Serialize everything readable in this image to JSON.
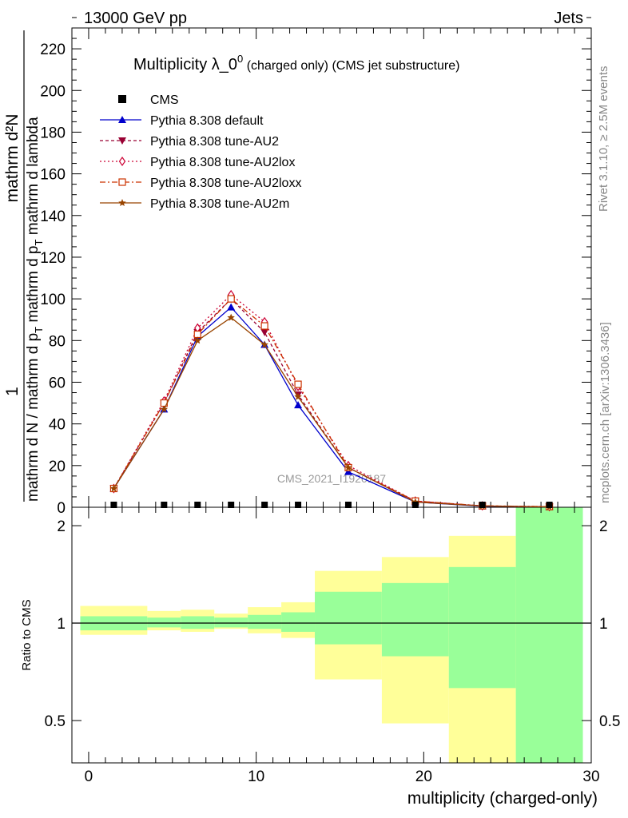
{
  "header": {
    "left": "13000 GeV pp",
    "right": "Jets"
  },
  "side_labels": {
    "rivet": "Rivet 3.1.10, ≥ 2.5M events",
    "mcplots": "mcplots.cern.ch [arXiv:1306.3436]"
  },
  "watermark": "CMS_2021_I1920187",
  "chart_data": {
    "type": "line",
    "title": "Multiplicity λ_0",
    "title_sup": "0",
    "title_suffix": " (charged only) (CMS jet substructure)",
    "ylabel_numerator": "1",
    "ylabel_numerator_main": "mathrm d²N",
    "ylabel_den_parts": [
      "mathrm d N / mathrm d p",
      "T",
      " mathrm d p",
      "T",
      " mathrm d lambda"
    ],
    "ylabel_den_short": "mathrm d N / mathrm d p",
    "xlabel": "multiplicity (charged-only)",
    "ratio_ylabel": "Ratio to CMS",
    "xlim": [
      -1,
      30
    ],
    "ylim": [
      0,
      230
    ],
    "xticks": [
      0,
      10,
      20,
      30
    ],
    "yticks": [
      0,
      20,
      40,
      60,
      80,
      100,
      120,
      140,
      160,
      180,
      200,
      220
    ],
    "ratio_ylim": [
      0.37,
      2.28
    ],
    "ratio_ticks": [
      0.5,
      1,
      2
    ],
    "x": [
      1.5,
      4.5,
      6.5,
      8.5,
      10.5,
      12.5,
      15.5,
      19.5,
      23.5,
      27.5
    ],
    "data": {
      "name": "CMS",
      "values": [
        0.5,
        0.5,
        0.5,
        0.5,
        0.5,
        0.5,
        0.5,
        0.1,
        0.05,
        0.02
      ]
    },
    "series": [
      {
        "name": "Pythia 8.308 default",
        "color": "#0000cc",
        "marker": "triangle-up",
        "dash": "",
        "values": [
          9,
          47,
          82,
          96,
          78,
          49,
          17,
          2.5,
          0.5,
          0.2
        ]
      },
      {
        "name": "Pythia 8.308 tune-AU2",
        "color": "#990033",
        "marker": "triangle-down",
        "dash": "4,3",
        "values": [
          9,
          50,
          84,
          100,
          84,
          54,
          19,
          3,
          0.6,
          0.2
        ]
      },
      {
        "name": "Pythia 8.308 tune-AU2lox",
        "color": "#cc0033",
        "marker": "diamond",
        "dash": "2,3",
        "values": [
          9,
          51,
          86,
          102,
          89,
          58,
          20,
          3,
          0.7,
          0.3
        ]
      },
      {
        "name": "Pythia 8.308 tune-AU2loxx",
        "color": "#cc3300",
        "marker": "square",
        "dash": "7,3,2,3",
        "values": [
          9,
          50,
          83,
          100,
          87,
          59,
          19,
          3,
          0.7,
          0.3
        ]
      },
      {
        "name": "Pythia 8.308 tune-AU2m",
        "color": "#994400",
        "marker": "star",
        "dash": "",
        "values": [
          9,
          47,
          80,
          91,
          78,
          53,
          19,
          2.5,
          0.6,
          0.2
        ]
      }
    ],
    "uncertainty_bins": {
      "edges": [
        -0.5,
        3.5,
        5.5,
        7.5,
        9.5,
        11.5,
        13.5,
        17.5,
        21.5,
        25.5,
        29.5
      ],
      "inner": [
        [
          0.95,
          1.05
        ],
        [
          0.97,
          1.04
        ],
        [
          0.96,
          1.05
        ],
        [
          0.97,
          1.04
        ],
        [
          0.96,
          1.06
        ],
        [
          0.94,
          1.08
        ],
        [
          0.86,
          1.25
        ],
        [
          0.79,
          1.33
        ],
        [
          0.63,
          1.49
        ],
        [
          0.37,
          2.28
        ]
      ],
      "outer": [
        [
          0.92,
          1.13
        ],
        [
          0.95,
          1.09
        ],
        [
          0.94,
          1.1
        ],
        [
          0.96,
          1.07
        ],
        [
          0.93,
          1.12
        ],
        [
          0.9,
          1.16
        ],
        [
          0.67,
          1.45
        ],
        [
          0.49,
          1.6
        ],
        [
          0.37,
          1.86
        ],
        [
          0.37,
          2.28
        ]
      ],
      "inner_color": "#99ff99",
      "outer_color": "#ffff99"
    }
  }
}
